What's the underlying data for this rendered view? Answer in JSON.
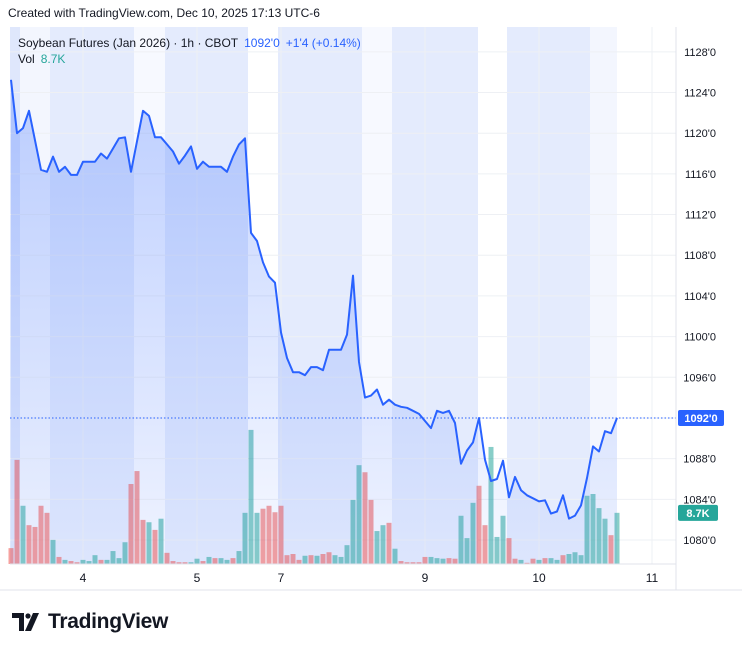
{
  "header": {
    "created": "Created with TradingView.com, Dec 10, 2025 17:13 UTC-6"
  },
  "legend": {
    "symbol": "Soybean Futures (Jan 2026) · 1h · CBOT",
    "last": "1092'0",
    "change": "+1'4 (+0.14%)",
    "vol_label": "Vol",
    "vol_value": "8.7K"
  },
  "logo": {
    "text": "TradingView",
    "mark": "TV"
  },
  "colors": {
    "line": "#2962ff",
    "up": "#26a69a",
    "down": "#ef5350",
    "price_tag": "#2962ff",
    "vol_tag": "#26a69a"
  },
  "chart_data": {
    "type": "area",
    "title": "Soybean Futures (Jan 2026) · 1h · CBOT",
    "grid": true,
    "y_ticks": [
      "1128'0",
      "1124'0",
      "1120'0",
      "1116'0",
      "1112'0",
      "1108'0",
      "1104'0",
      "1100'0",
      "1096'0",
      "1088'0",
      "1084'0",
      "1080'0"
    ],
    "y_tick_values": [
      1128,
      1124,
      1120,
      1116,
      1112,
      1108,
      1104,
      1100,
      1096,
      1088,
      1084,
      1080
    ],
    "ylim": [
      1078,
      1130
    ],
    "x_ticks": [
      "4",
      "5",
      "7",
      "9",
      "10",
      "11"
    ],
    "last_price_label": "1092'0",
    "last_volume_label": "8.7K",
    "price": [
      1125.25,
      1120.0,
      1120.5,
      1122.2,
      1119.3,
      1116.4,
      1116.2,
      1117.7,
      1116.2,
      1116.7,
      1115.9,
      1115.9,
      1117.2,
      1117.2,
      1117.2,
      1118.0,
      1117.5,
      1118.5,
      1119.5,
      1119.6,
      1116.2,
      1119.2,
      1122.2,
      1121.7,
      1119.6,
      1119.6,
      1118.9,
      1118.2,
      1117.0,
      1117.8,
      1118.7,
      1116.5,
      1117.2,
      1116.7,
      1116.7,
      1116.7,
      1116.2,
      1117.7,
      1118.9,
      1119.5,
      1110.2,
      1109.4,
      1107.3,
      1105.9,
      1105.3,
      1100.4,
      1097.9,
      1096.5,
      1096.5,
      1096.2,
      1097.0,
      1097.0,
      1096.7,
      1098.7,
      1098.7,
      1098.7,
      1100.2,
      1106.0,
      1097.5,
      1094.0,
      1094.2,
      1094.8,
      1093.3,
      1093.8,
      1093.3,
      1093.1,
      1093.0,
      1092.7,
      1092.4,
      1091.7,
      1091.0,
      1092.7,
      1092.5,
      1092.7,
      1091.5,
      1087.5,
      1088.8,
      1089.6,
      1092.0,
      1087.9,
      1085.8,
      1086.0,
      1087.8,
      1084.2,
      1086.2,
      1084.9,
      1084.4,
      1084.1,
      1083.8,
      1083.9,
      1082.6,
      1082.8,
      1084.4,
      1082.1,
      1082.4,
      1083.4,
      1086.1,
      1089.2,
      1088.7,
      1090.7,
      1090.5,
      1092.0
    ],
    "volume_k": [
      2.7,
      17.7,
      9.9,
      6.6,
      6.3,
      9.9,
      8.7,
      4.1,
      1.2,
      0.7,
      0.5,
      0.3,
      0.7,
      0.5,
      1.5,
      0.7,
      0.7,
      2.2,
      1.0,
      3.7,
      13.6,
      15.8,
      7.5,
      7.1,
      5.8,
      7.7,
      1.9,
      0.5,
      0.3,
      0.3,
      0.3,
      0.9,
      0.5,
      1.2,
      1.0,
      1.0,
      0.7,
      1.0,
      2.2,
      8.7,
      22.8,
      8.7,
      9.4,
      9.9,
      8.8,
      9.9,
      1.5,
      1.7,
      0.7,
      1.4,
      1.5,
      1.4,
      1.7,
      2.0,
      1.5,
      1.2,
      3.2,
      10.9,
      16.8,
      15.6,
      10.9,
      5.6,
      6.6,
      7.0,
      2.6,
      0.5,
      0.3,
      0.3,
      0.3,
      1.2,
      1.2,
      1.0,
      0.9,
      1.0,
      0.9,
      8.2,
      4.4,
      10.4,
      13.3,
      6.6,
      19.9,
      4.6,
      8.2,
      4.4,
      0.9,
      0.7,
      0.2,
      0.9,
      0.7,
      1.0,
      1.0,
      0.7,
      1.5,
      1.7,
      2.0,
      1.5,
      11.6,
      11.9,
      9.5,
      7.7,
      4.9,
      8.7
    ],
    "volume_dir": "ddguurrgrgrrgggrggg grruguguur rggrgrggrggg grrrrrrrgrgr rgggggrrggrgrrrrrgggrrgggrrgggrrgrrgrggrgggggggrgrg"
  }
}
